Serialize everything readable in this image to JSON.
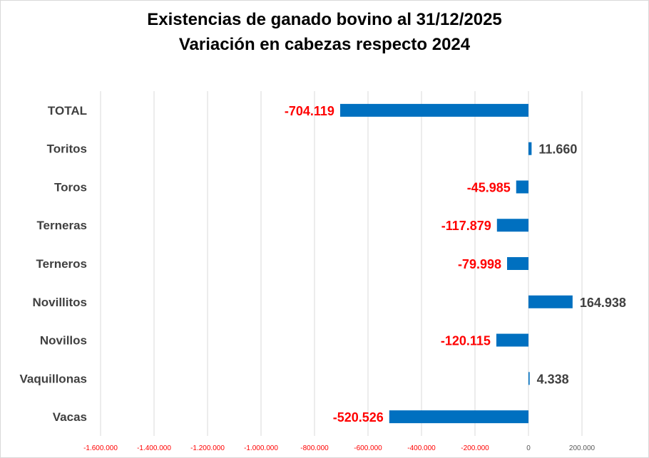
{
  "chart_data": {
    "type": "bar",
    "orientation": "horizontal",
    "title": [
      "Existencias de ganado bovino  al 31/12/2025",
      "Variación  en cabezas respecto 2024"
    ],
    "categories": [
      "TOTAL",
      "Toritos",
      "Toros",
      "Terneras",
      "Terneros",
      "Novillitos",
      "Novillos",
      "Vaquillonas",
      "Vacas"
    ],
    "values": [
      -704119,
      11660,
      -45985,
      -117879,
      -79998,
      164938,
      -120115,
      4338,
      -520526
    ],
    "data_labels": [
      "-704.119",
      "11.660",
      "-45.985",
      "-117.879",
      "-79.998",
      "164.938",
      "-120.115",
      "4.338",
      "-520.526"
    ],
    "xlim": [
      -1600000,
      200000
    ],
    "x_ticks": [
      -1600000,
      -1400000,
      -1200000,
      -1000000,
      -800000,
      -600000,
      -400000,
      -200000,
      0,
      200000
    ],
    "x_tick_labels": [
      "-1.600.000",
      "-1.400.000",
      "-1.200.000",
      "-1.000.000",
      "-800.000",
      "-600.000",
      "-400.000",
      "-200.000",
      "0",
      "200.000"
    ],
    "grid": true,
    "legend": "none",
    "colors": {
      "bar": "#0070c0",
      "negative_label": "#ff0000",
      "positive_label": "#404040",
      "category_label": "#404040",
      "grid": "#d9d9d9"
    }
  }
}
